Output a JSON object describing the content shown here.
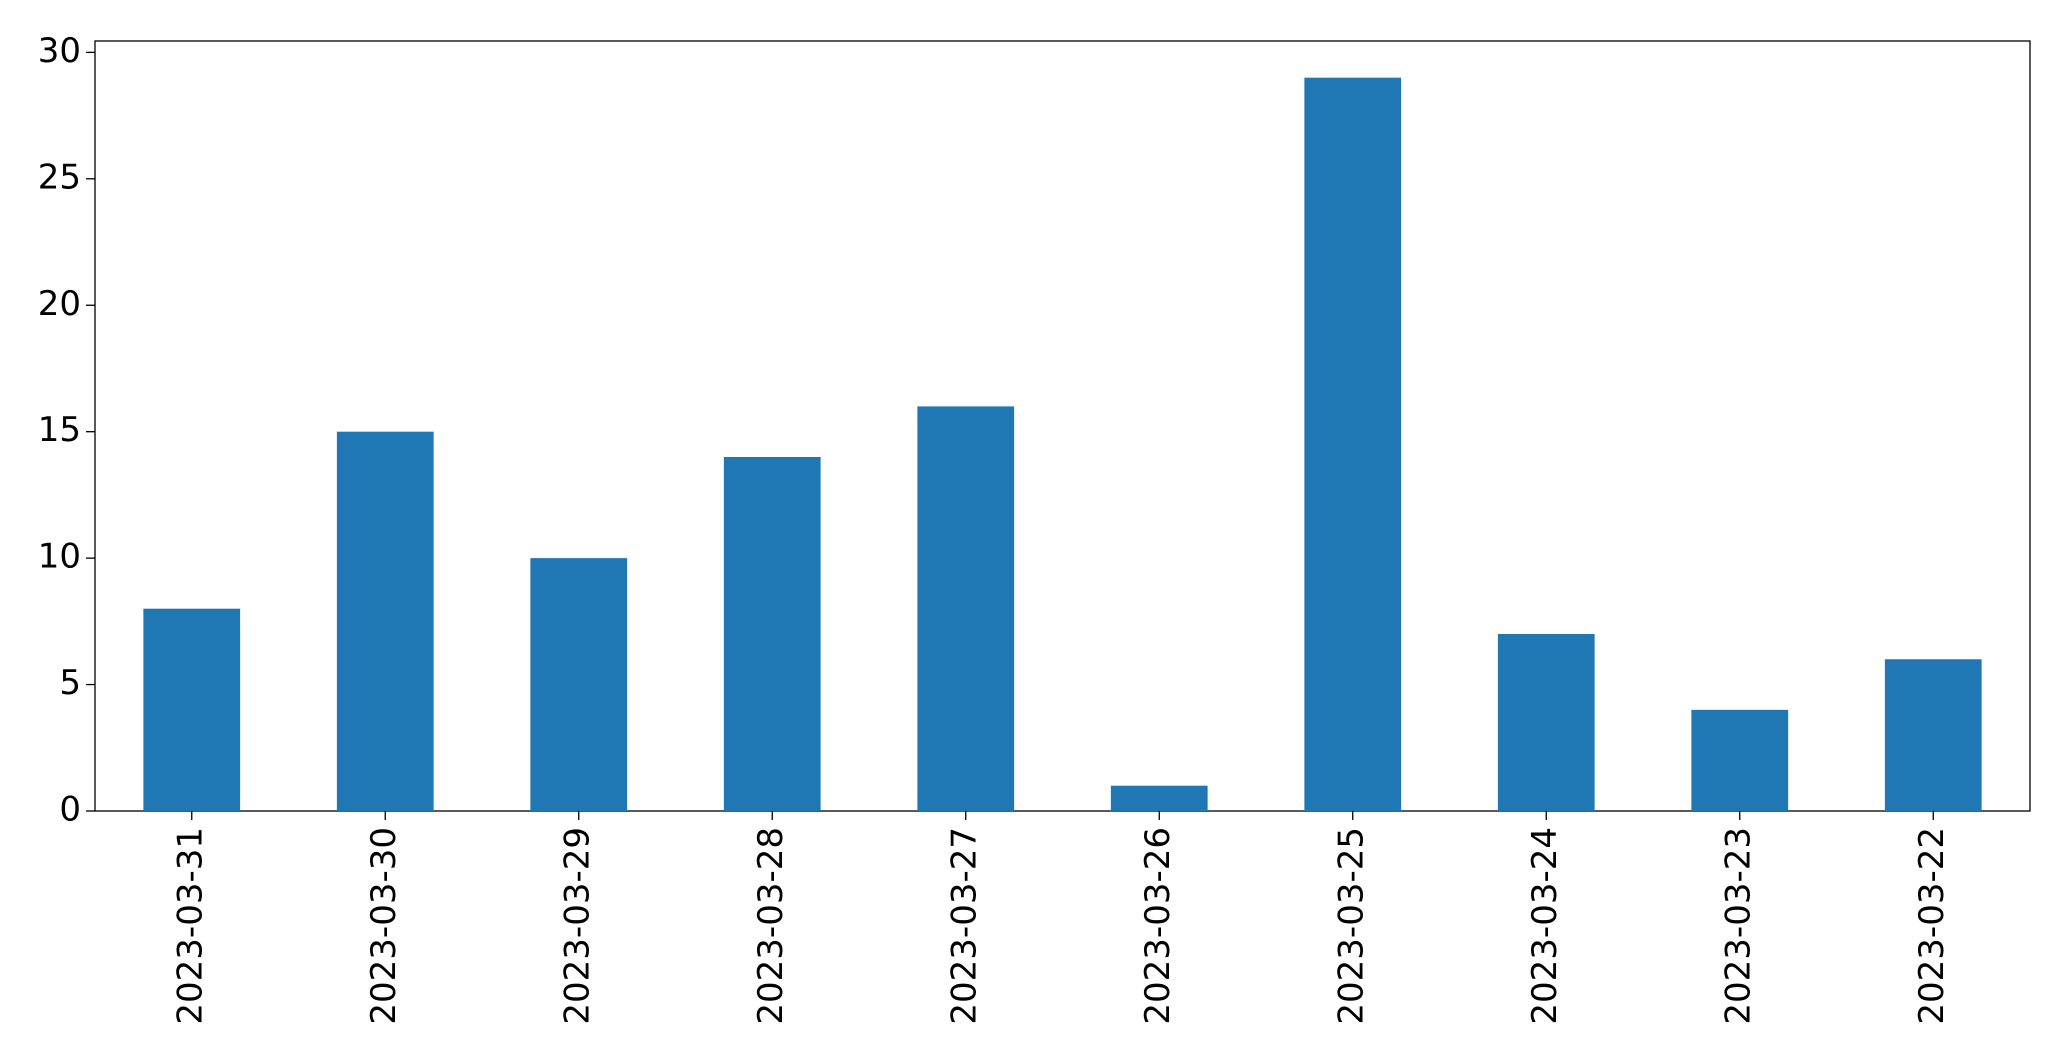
{
  "chart_data": {
    "type": "bar",
    "categories": [
      "2023-03-31",
      "2023-03-30",
      "2023-03-29",
      "2023-03-28",
      "2023-03-27",
      "2023-03-26",
      "2023-03-25",
      "2023-03-24",
      "2023-03-23",
      "2023-03-22"
    ],
    "values": [
      8,
      15,
      10,
      14,
      16,
      1,
      29,
      7,
      4,
      6
    ],
    "color": "#1f77b4",
    "ylim": [
      0,
      30.45
    ],
    "yticks": [
      0,
      5,
      10,
      15,
      20,
      25,
      30
    ],
    "grid": false
  }
}
